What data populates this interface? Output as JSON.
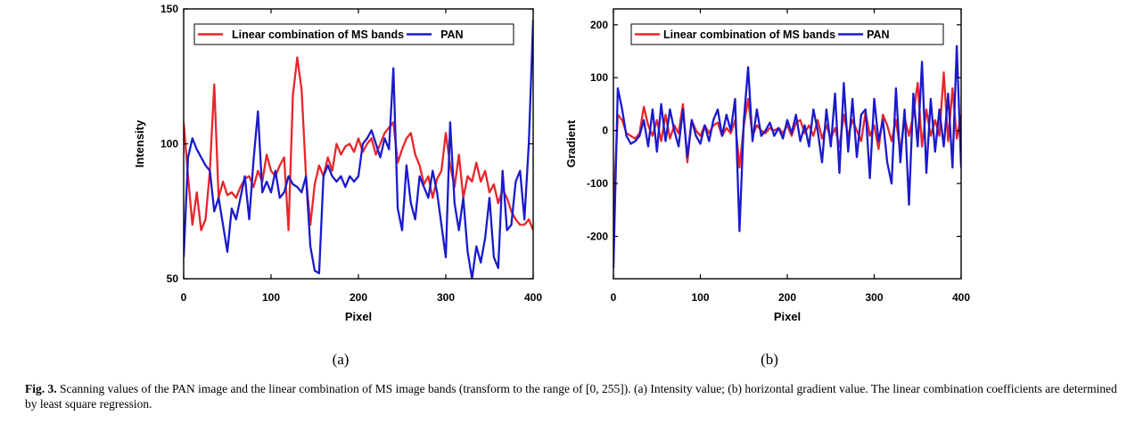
{
  "chart_data": [
    {
      "type": "line",
      "panel_label": "(a)",
      "xlabel": "Pixel",
      "ylabel": "Intensity",
      "xlim": [
        0,
        400
      ],
      "ylim": [
        50,
        150
      ],
      "xticks": [
        "0",
        "100",
        "200",
        "300",
        "400"
      ],
      "yticks": [
        "50",
        "100",
        "150"
      ],
      "grid": false,
      "legend_position": "top",
      "series": [
        {
          "name": "Linear combination of MS bands",
          "color": "#e8262a",
          "x": [
            0,
            5,
            10,
            15,
            20,
            25,
            30,
            35,
            40,
            45,
            50,
            55,
            60,
            65,
            70,
            75,
            80,
            85,
            90,
            95,
            100,
            105,
            110,
            115,
            120,
            125,
            130,
            135,
            140,
            145,
            150,
            155,
            160,
            165,
            170,
            175,
            180,
            185,
            190,
            195,
            200,
            205,
            210,
            215,
            220,
            225,
            230,
            235,
            240,
            245,
            250,
            255,
            260,
            265,
            270,
            275,
            280,
            285,
            290,
            295,
            300,
            305,
            310,
            315,
            320,
            325,
            330,
            335,
            340,
            345,
            350,
            355,
            360,
            365,
            370,
            375,
            380,
            385,
            390,
            395,
            400
          ],
          "values": [
            108,
            88,
            70,
            82,
            68,
            72,
            90,
            122,
            80,
            86,
            81,
            82,
            80,
            84,
            87,
            88,
            84,
            90,
            86,
            96,
            90,
            88,
            92,
            95,
            68,
            118,
            132,
            120,
            88,
            70,
            85,
            92,
            88,
            95,
            90,
            100,
            96,
            99,
            100,
            97,
            102,
            97,
            100,
            102,
            96,
            100,
            104,
            106,
            108,
            93,
            98,
            102,
            104,
            96,
            92,
            85,
            88,
            80,
            87,
            90,
            104,
            92,
            84,
            96,
            80,
            88,
            86,
            93,
            86,
            90,
            82,
            85,
            78,
            83,
            80,
            75,
            72,
            70,
            70,
            72,
            68
          ]
        },
        {
          "name": "PAN",
          "color": "#1a1acc",
          "x": [
            0,
            5,
            10,
            15,
            20,
            25,
            30,
            35,
            40,
            45,
            50,
            55,
            60,
            65,
            70,
            75,
            80,
            85,
            90,
            95,
            100,
            105,
            110,
            115,
            120,
            125,
            130,
            135,
            140,
            145,
            150,
            155,
            160,
            165,
            170,
            175,
            180,
            185,
            190,
            195,
            200,
            205,
            210,
            215,
            220,
            225,
            230,
            235,
            240,
            245,
            250,
            255,
            260,
            265,
            270,
            275,
            280,
            285,
            290,
            295,
            300,
            305,
            310,
            315,
            320,
            325,
            330,
            335,
            340,
            345,
            350,
            355,
            360,
            365,
            370,
            375,
            380,
            385,
            390,
            395,
            400
          ],
          "values": [
            58,
            95,
            102,
            98,
            95,
            92,
            90,
            75,
            80,
            70,
            60,
            76,
            72,
            80,
            88,
            72,
            94,
            112,
            82,
            86,
            82,
            90,
            80,
            82,
            88,
            85,
            84,
            82,
            88,
            62,
            53,
            52,
            88,
            92,
            88,
            86,
            88,
            84,
            88,
            86,
            88,
            100,
            102,
            105,
            100,
            95,
            102,
            98,
            128,
            76,
            68,
            92,
            78,
            72,
            88,
            84,
            80,
            90,
            82,
            70,
            58,
            108,
            78,
            68,
            80,
            60,
            50,
            62,
            56,
            65,
            80,
            58,
            54,
            90,
            68,
            70,
            86,
            90,
            72,
            100,
            146
          ]
        }
      ]
    },
    {
      "type": "line",
      "panel_label": "(b)",
      "xlabel": "Pixel",
      "ylabel": "Gradient",
      "xlim": [
        0,
        400
      ],
      "ylim": [
        -280,
        230
      ],
      "xticks": [
        "0",
        "100",
        "200",
        "300",
        "400"
      ],
      "yticks": [
        "-200",
        "-100",
        "0",
        "100",
        "200"
      ],
      "grid": false,
      "legend_position": "top",
      "series": [
        {
          "name": "Linear combination of MS bands",
          "color": "#e8262a",
          "x": [
            0,
            5,
            10,
            15,
            20,
            25,
            30,
            35,
            40,
            45,
            50,
            55,
            60,
            65,
            70,
            75,
            80,
            85,
            90,
            95,
            100,
            105,
            110,
            115,
            120,
            125,
            130,
            135,
            140,
            145,
            150,
            155,
            160,
            165,
            170,
            175,
            180,
            185,
            190,
            195,
            200,
            205,
            210,
            215,
            220,
            225,
            230,
            235,
            240,
            245,
            250,
            255,
            260,
            265,
            270,
            275,
            280,
            285,
            290,
            295,
            300,
            305,
            310,
            315,
            320,
            325,
            330,
            335,
            340,
            345,
            350,
            355,
            360,
            365,
            370,
            375,
            380,
            385,
            390,
            395,
            400
          ],
          "values": [
            -150,
            30,
            20,
            -5,
            -10,
            -15,
            -5,
            45,
            10,
            -10,
            20,
            -20,
            30,
            -15,
            10,
            -5,
            50,
            -60,
            20,
            0,
            -10,
            10,
            -5,
            10,
            15,
            -10,
            5,
            -5,
            20,
            -70,
            10,
            60,
            -10,
            10,
            0,
            -5,
            5,
            0,
            5,
            -5,
            10,
            -10,
            15,
            20,
            -5,
            10,
            -10,
            20,
            -15,
            10,
            -15,
            5,
            -30,
            30,
            -10,
            20,
            0,
            -20,
            35,
            -10,
            10,
            -35,
            30,
            10,
            -20,
            20,
            -40,
            25,
            -10,
            30,
            90,
            -30,
            40,
            -10,
            20,
            -10,
            110,
            -20,
            80,
            -15,
            30
          ]
        },
        {
          "name": "PAN",
          "color": "#1a1acc",
          "x": [
            0,
            5,
            10,
            15,
            20,
            25,
            30,
            35,
            40,
            45,
            50,
            55,
            60,
            65,
            70,
            75,
            80,
            85,
            90,
            95,
            100,
            105,
            110,
            115,
            120,
            125,
            130,
            135,
            140,
            145,
            150,
            155,
            160,
            165,
            170,
            175,
            180,
            185,
            190,
            195,
            200,
            205,
            210,
            215,
            220,
            225,
            230,
            235,
            240,
            245,
            250,
            255,
            260,
            265,
            270,
            275,
            280,
            285,
            290,
            295,
            300,
            305,
            310,
            315,
            320,
            325,
            330,
            335,
            340,
            345,
            350,
            355,
            360,
            365,
            370,
            375,
            380,
            385,
            390,
            395,
            400
          ],
          "values": [
            -260,
            80,
            40,
            -10,
            -25,
            -20,
            -10,
            20,
            -30,
            40,
            -40,
            50,
            -20,
            40,
            0,
            -30,
            40,
            -50,
            20,
            -10,
            -25,
            10,
            -20,
            20,
            40,
            -10,
            30,
            0,
            60,
            -190,
            20,
            120,
            -20,
            40,
            -10,
            0,
            15,
            -10,
            5,
            -15,
            20,
            -5,
            30,
            -20,
            10,
            -30,
            40,
            0,
            -60,
            40,
            -30,
            70,
            -80,
            90,
            -40,
            60,
            -50,
            30,
            40,
            -90,
            60,
            -20,
            20,
            -60,
            -100,
            80,
            -60,
            40,
            -140,
            70,
            -30,
            130,
            -80,
            60,
            -40,
            40,
            -30,
            70,
            -70,
            160,
            -70
          ]
        }
      ]
    }
  ],
  "caption": {
    "fig_label": "Fig. 3.",
    "text": " Scanning values of the PAN image and the linear combination of MS image bands (transform to the range of [0, 255]). (a) Intensity value; (b) horizontal gradient value. The linear combination coefficients are determined by least square regression."
  }
}
